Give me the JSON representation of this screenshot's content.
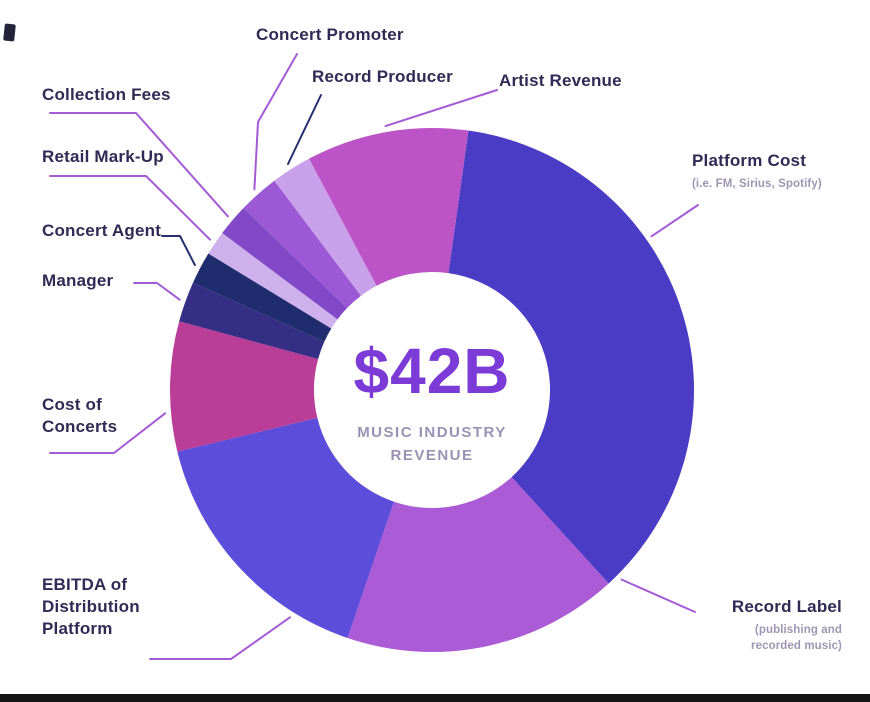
{
  "page": {
    "background_color": "#ffffff",
    "footer_bar_color": "#161616"
  },
  "chart_data": {
    "type": "pie",
    "style": "donut",
    "title": "$42B MUSIC INDUSTRY REVENUE",
    "center": {
      "value": "$42B",
      "label": "MUSIC INDUSTRY REVENUE"
    },
    "units": "percent of $42B total, estimated from arc angles (no numeric labels shown in chart)",
    "start_angle_deg": 8,
    "direction": "clockwise",
    "legend_position": "outside-callout-labels",
    "series": [
      {
        "name": "Platform Cost",
        "sublabel": "(i.e. FM, Sirius, Spotify)",
        "value": 36,
        "color": "#4B3CC6"
      },
      {
        "name": "Record Label",
        "sublabel": "(publishing and recorded music)",
        "value": 17,
        "color": "#AB5BD6"
      },
      {
        "name": "EBITDA of Distribution Platform",
        "value": 16,
        "color": "#5C4EDA"
      },
      {
        "name": "Cost of Concerts",
        "value": 8,
        "color": "#BA3D98"
      },
      {
        "name": "Manager",
        "value": 2.5,
        "color": "#352E85"
      },
      {
        "name": "Concert Agent",
        "value": 2,
        "color": "#1F2C6E"
      },
      {
        "name": "Retail Mark-Up",
        "value": 1.5,
        "color": "#CDB0EC"
      },
      {
        "name": "Collection Fees",
        "value": 2,
        "color": "#8348C8"
      },
      {
        "name": "Concert Promoter",
        "value": 2.5,
        "color": "#9B59D6"
      },
      {
        "name": "Record Producer",
        "value": 2.5,
        "color": "#C9A0EA"
      },
      {
        "name": "Artist Revenue",
        "value": 10,
        "color": "#BC53C6"
      }
    ],
    "leader_line_colors": {
      "default": "#A45BD6",
      "dark": "#26306F"
    },
    "center_text_color": "#7C3BD6",
    "center_sublabel_color": "#9A92B4",
    "label_text_color": "#2F2B55",
    "sublabel_text_color": "#9E96B2"
  }
}
